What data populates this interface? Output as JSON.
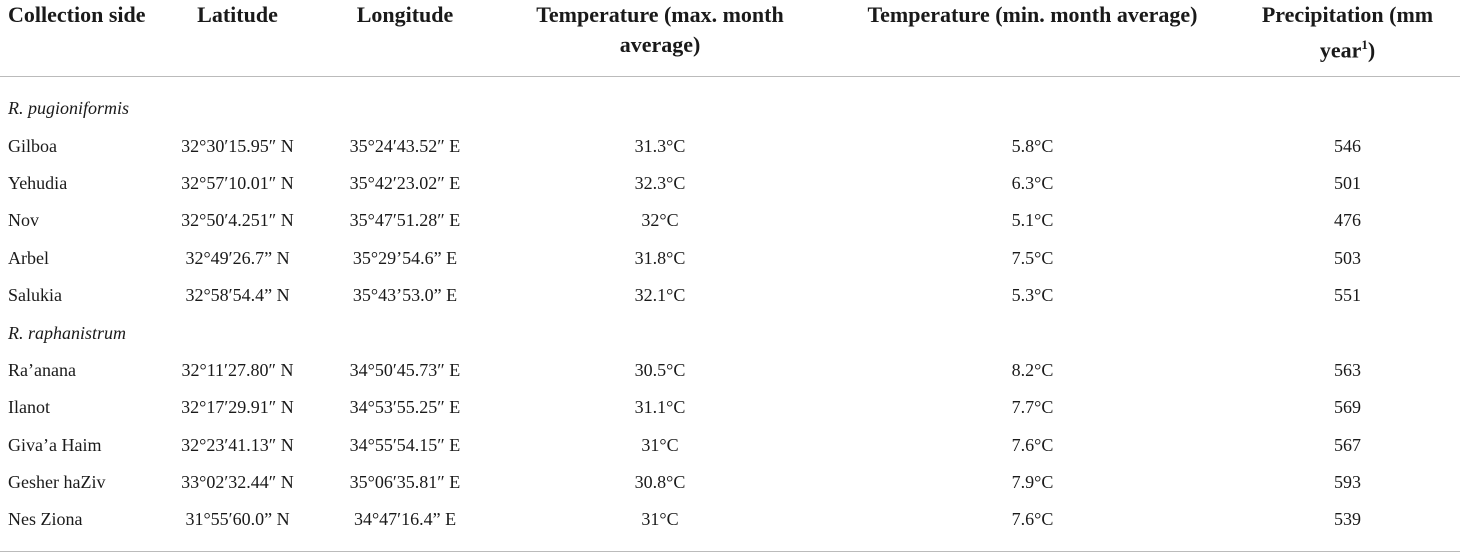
{
  "table": {
    "header": [
      "Collection side",
      "Latitude",
      "Longitude",
      "Temperature (max. month average)",
      "Temperature (min. month average)",
      {
        "text": "Precipitation (mm year",
        "sup": "1",
        "end": ")"
      }
    ],
    "groups": [
      {
        "label": "R. pugioniformis",
        "rows": [
          [
            "Gilboa",
            "32°30′15.95″ N",
            "35°24′43.52″ E",
            "31.3°C",
            "5.8°C",
            "546"
          ],
          [
            "Yehudia",
            "32°57′10.01″ N",
            "35°42′23.02″ E",
            "32.3°C",
            "6.3°C",
            "501"
          ],
          [
            "Nov",
            "32°50′4.251″ N",
            "35°47′51.28″ E",
            "32°C",
            "5.1°C",
            "476"
          ],
          [
            "Arbel",
            "32°49′26.7” N",
            "35°29’54.6” E",
            "31.8°C",
            "7.5°C",
            "503"
          ],
          [
            "Salukia",
            "32°58′54.4” N",
            "35°43’53.0” E",
            "32.1°C",
            "5.3°C",
            "551"
          ]
        ]
      },
      {
        "label": "R. raphanistrum",
        "rows": [
          [
            "Ra’anana",
            "32°11′27.80″ N",
            "34°50′45.73″ E",
            "30.5°C",
            "8.2°C",
            "563"
          ],
          [
            "Ilanot",
            "32°17′29.91″ N",
            "34°53′55.25″ E",
            "31.1°C",
            "7.7°C",
            "569"
          ],
          [
            "Giva’a Haim",
            "32°23′41.13″ N",
            "34°55′54.15″ E",
            "31°C",
            "7.6°C",
            "567"
          ],
          [
            "Gesher haZiv",
            "33°02′32.44″ N",
            "35°06′35.81″ E",
            "30.8°C",
            "7.9°C",
            "593"
          ],
          [
            "Nes Ziona",
            "31°55′60.0” N",
            "34°47′16.4” E",
            "31°C",
            "7.6°C",
            "539"
          ]
        ]
      }
    ]
  }
}
